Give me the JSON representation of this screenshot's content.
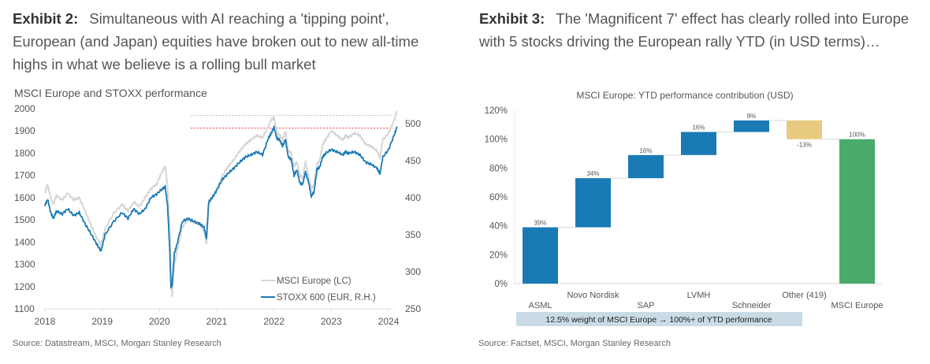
{
  "exhibits": [
    {
      "label": "Exhibit 2:",
      "caption": "Simultaneous with AI reaching a 'tipping point', European (and Japan) equities have broken out to new all-time highs in what we believe is a rolling bull market",
      "source": "Source: Datastream, MSCI, Morgan Stanley Research"
    },
    {
      "label": "Exhibit 3:",
      "caption": "The 'Magnificent 7' effect has clearly rolled into Europe with 5 stocks driving the European rally YTD (in USD terms)…",
      "source": "Source: Factset, MSCI, Morgan Stanley Research"
    }
  ],
  "chart_data": [
    {
      "type": "line",
      "title": "MSCI Europe and STOXX performance",
      "xlabel": "",
      "x_ticks": [
        "2018",
        "2019",
        "2020",
        "2021",
        "2022",
        "2023",
        "2024"
      ],
      "xlim": [
        2018.0,
        2024.2
      ],
      "y_left": {
        "ticks": [
          "2000",
          "1900",
          "1800",
          "1700",
          "1600",
          "1500",
          "1400",
          "1300",
          "1200",
          "1100"
        ],
        "range": [
          1100,
          2000
        ]
      },
      "y_right": {
        "ticks": [
          "500",
          "450",
          "400",
          "350",
          "300",
          "250"
        ],
        "range": [
          250,
          500
        ]
      },
      "grid": false,
      "legend_position": "bottom-right",
      "reference_lines": [
        {
          "name": "MSCI Europe prior high",
          "axis": "left",
          "value": 1970,
          "color": "#bbbbbb",
          "style": "dotted",
          "from_x": 2020.55
        },
        {
          "name": "STOXX 600 prior high",
          "axis": "right",
          "value": 494,
          "color": "#e8302a",
          "style": "dotted",
          "from_x": 2020.55
        }
      ],
      "series": [
        {
          "name": "MSCI Europe (LC)",
          "axis": "left",
          "color": "#d6d6d6",
          "x": [
            2018.0,
            2018.05,
            2018.1,
            2018.15,
            2018.2,
            2018.3,
            2018.4,
            2018.5,
            2018.6,
            2018.7,
            2018.8,
            2018.9,
            2018.98,
            2019.05,
            2019.2,
            2019.35,
            2019.45,
            2019.55,
            2019.65,
            2019.75,
            2019.85,
            2019.95,
            2020.05,
            2020.1,
            2020.14,
            2020.18,
            2020.2,
            2020.22,
            2020.26,
            2020.3,
            2020.4,
            2020.5,
            2020.6,
            2020.7,
            2020.78,
            2020.82,
            2020.86,
            2020.92,
            2021.0,
            2021.1,
            2021.2,
            2021.3,
            2021.4,
            2021.5,
            2021.6,
            2021.7,
            2021.8,
            2021.9,
            2021.95,
            2022.0,
            2022.05,
            2022.1,
            2022.15,
            2022.2,
            2022.25,
            2022.3,
            2022.35,
            2022.4,
            2022.45,
            2022.5,
            2022.55,
            2022.6,
            2022.65,
            2022.7,
            2022.75,
            2022.8,
            2022.85,
            2022.9,
            2023.0,
            2023.1,
            2023.2,
            2023.25,
            2023.3,
            2023.4,
            2023.5,
            2023.6,
            2023.7,
            2023.8,
            2023.85,
            2023.9,
            2024.0,
            2024.1,
            2024.15
          ],
          "y": [
            1620,
            1660,
            1600,
            1570,
            1610,
            1590,
            1620,
            1590,
            1600,
            1540,
            1480,
            1420,
            1390,
            1460,
            1530,
            1570,
            1540,
            1580,
            1560,
            1600,
            1640,
            1660,
            1720,
            1740,
            1650,
            1450,
            1250,
            1160,
            1300,
            1350,
            1470,
            1500,
            1490,
            1480,
            1450,
            1390,
            1570,
            1600,
            1640,
            1700,
            1740,
            1770,
            1810,
            1840,
            1860,
            1880,
            1870,
            1920,
            1950,
            1960,
            1890,
            1880,
            1860,
            1900,
            1810,
            1800,
            1740,
            1760,
            1700,
            1690,
            1760,
            1700,
            1640,
            1660,
            1750,
            1770,
            1840,
            1860,
            1900,
            1880,
            1860,
            1880,
            1870,
            1890,
            1880,
            1840,
            1830,
            1810,
            1780,
            1860,
            1890,
            1950,
            1990
          ]
        },
        {
          "name": "STOXX 600 (EUR, R.H.)",
          "axis": "right",
          "color": "#1a7ab5",
          "x": [
            2018.0,
            2018.05,
            2018.1,
            2018.15,
            2018.2,
            2018.3,
            2018.4,
            2018.5,
            2018.6,
            2018.7,
            2018.8,
            2018.9,
            2018.98,
            2019.05,
            2019.2,
            2019.35,
            2019.45,
            2019.55,
            2019.65,
            2019.75,
            2019.85,
            2019.95,
            2020.05,
            2020.1,
            2020.14,
            2020.18,
            2020.2,
            2020.22,
            2020.26,
            2020.3,
            2020.4,
            2020.5,
            2020.6,
            2020.7,
            2020.78,
            2020.82,
            2020.86,
            2020.92,
            2021.0,
            2021.1,
            2021.2,
            2021.3,
            2021.4,
            2021.5,
            2021.6,
            2021.7,
            2021.8,
            2021.9,
            2021.95,
            2022.0,
            2022.05,
            2022.1,
            2022.15,
            2022.2,
            2022.25,
            2022.3,
            2022.35,
            2022.4,
            2022.45,
            2022.5,
            2022.55,
            2022.6,
            2022.65,
            2022.7,
            2022.75,
            2022.8,
            2022.85,
            2022.9,
            2023.0,
            2023.1,
            2023.2,
            2023.25,
            2023.3,
            2023.4,
            2023.5,
            2023.6,
            2023.7,
            2023.8,
            2023.85,
            2023.9,
            2024.0,
            2024.1,
            2024.15
          ],
          "y": [
            390,
            398,
            380,
            372,
            382,
            378,
            385,
            376,
            380,
            365,
            352,
            338,
            328,
            350,
            368,
            380,
            372,
            385,
            378,
            385,
            400,
            405,
            412,
            415,
            390,
            330,
            280,
            282,
            325,
            335,
            368,
            372,
            368,
            365,
            360,
            345,
            395,
            400,
            410,
            425,
            433,
            440,
            448,
            455,
            458,
            462,
            458,
            480,
            487,
            495,
            480,
            478,
            470,
            478,
            455,
            452,
            430,
            438,
            420,
            418,
            435,
            422,
            402,
            408,
            438,
            442,
            455,
            460,
            465,
            462,
            458,
            462,
            460,
            462,
            458,
            448,
            445,
            440,
            432,
            455,
            465,
            485,
            496
          ]
        }
      ]
    },
    {
      "type": "bar",
      "subtype": "waterfall",
      "title": "MSCI Europe: YTD performance contribution (USD)",
      "xlabel": "",
      "ylabel": "",
      "ylim": [
        0,
        120
      ],
      "y_ticks": [
        "0%",
        "20%",
        "40%",
        "60%",
        "80%",
        "100%",
        "120%"
      ],
      "categories": [
        "ASML",
        "Novo Nordisk",
        "SAP",
        "LVMH",
        "Schneider",
        "Other (419)",
        "MSCI Europe"
      ],
      "values": [
        39,
        34,
        16,
        16,
        8,
        -13,
        100
      ],
      "value_labels": [
        "39%",
        "34%",
        "16%",
        "16%",
        "8%",
        "-13%",
        "100%"
      ],
      "bar_kinds": [
        "increase",
        "increase",
        "increase",
        "increase",
        "increase",
        "decrease",
        "total"
      ],
      "colors": {
        "increase": "#1a7ab5",
        "decrease": "#e8cb80",
        "total": "#4aab6a",
        "connector": "#d9d9d9"
      },
      "annotation": "12.5% weight of MSCI Europe → 100%+ of YTD performance",
      "annotation_bg": "#c9dbe5",
      "grid": false
    }
  ]
}
